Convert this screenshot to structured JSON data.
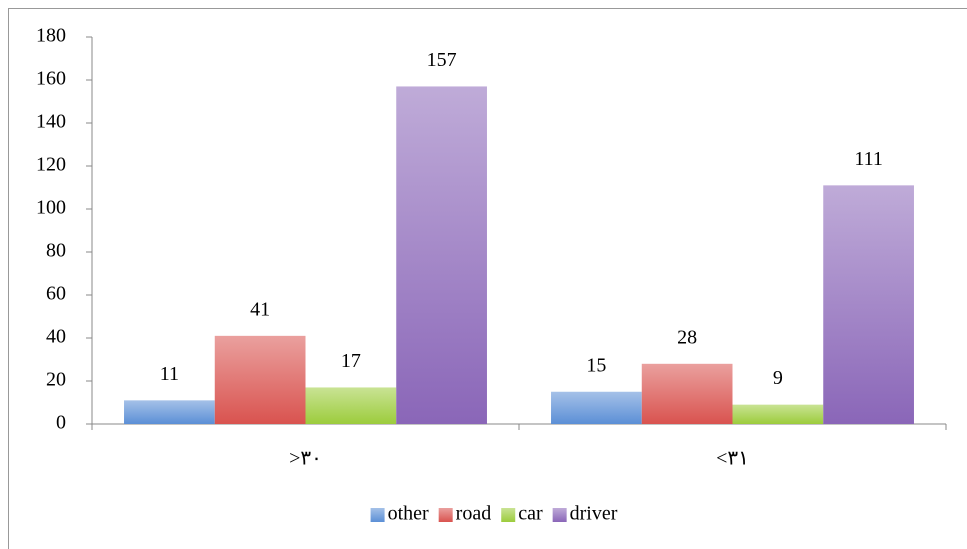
{
  "chart_data": {
    "type": "bar",
    "categories": [
      ">٣٠",
      "<٣١"
    ],
    "series": [
      {
        "name": "other",
        "color": "#5b8fd6",
        "values": [
          11,
          15
        ]
      },
      {
        "name": "road",
        "color": "#d9534f",
        "values": [
          41,
          28
        ]
      },
      {
        "name": "car",
        "color": "#9ccc3c",
        "values": [
          17,
          9
        ]
      },
      {
        "name": "driver",
        "color": "#8a66b8",
        "values": [
          157,
          111
        ]
      }
    ],
    "ylim": [
      0,
      180
    ],
    "yticks": [
      0,
      20,
      40,
      60,
      80,
      100,
      120,
      140,
      160,
      180
    ],
    "data_labels": true,
    "legend": "bottom"
  }
}
